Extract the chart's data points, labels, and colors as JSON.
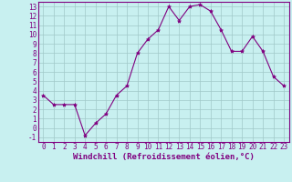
{
  "x": [
    0,
    1,
    2,
    3,
    4,
    5,
    6,
    7,
    8,
    9,
    10,
    11,
    12,
    13,
    14,
    15,
    16,
    17,
    18,
    19,
    20,
    21,
    22,
    23
  ],
  "y": [
    3.5,
    2.5,
    2.5,
    2.5,
    -0.8,
    0.5,
    1.5,
    3.5,
    4.5,
    8.0,
    9.5,
    10.5,
    13.0,
    11.5,
    13.0,
    13.2,
    12.5,
    10.5,
    8.2,
    8.2,
    9.8,
    8.2,
    5.5,
    4.5
  ],
  "line_color": "#800080",
  "marker": "*",
  "marker_color": "#800080",
  "bg_color": "#c8f0f0",
  "grid_color": "#a0c8c8",
  "xlabel": "Windchill (Refroidissement éolien,°C)",
  "xlim": [
    -0.5,
    23.5
  ],
  "ylim": [
    -1.5,
    13.5
  ],
  "xticks": [
    0,
    1,
    2,
    3,
    4,
    5,
    6,
    7,
    8,
    9,
    10,
    11,
    12,
    13,
    14,
    15,
    16,
    17,
    18,
    19,
    20,
    21,
    22,
    23
  ],
  "yticks": [
    -1,
    0,
    1,
    2,
    3,
    4,
    5,
    6,
    7,
    8,
    9,
    10,
    11,
    12,
    13
  ],
  "tick_color": "#800080",
  "axis_color": "#800080",
  "xlabel_fontsize": 6.5,
  "tick_fontsize": 5.5,
  "line_width": 0.8,
  "marker_size": 3
}
